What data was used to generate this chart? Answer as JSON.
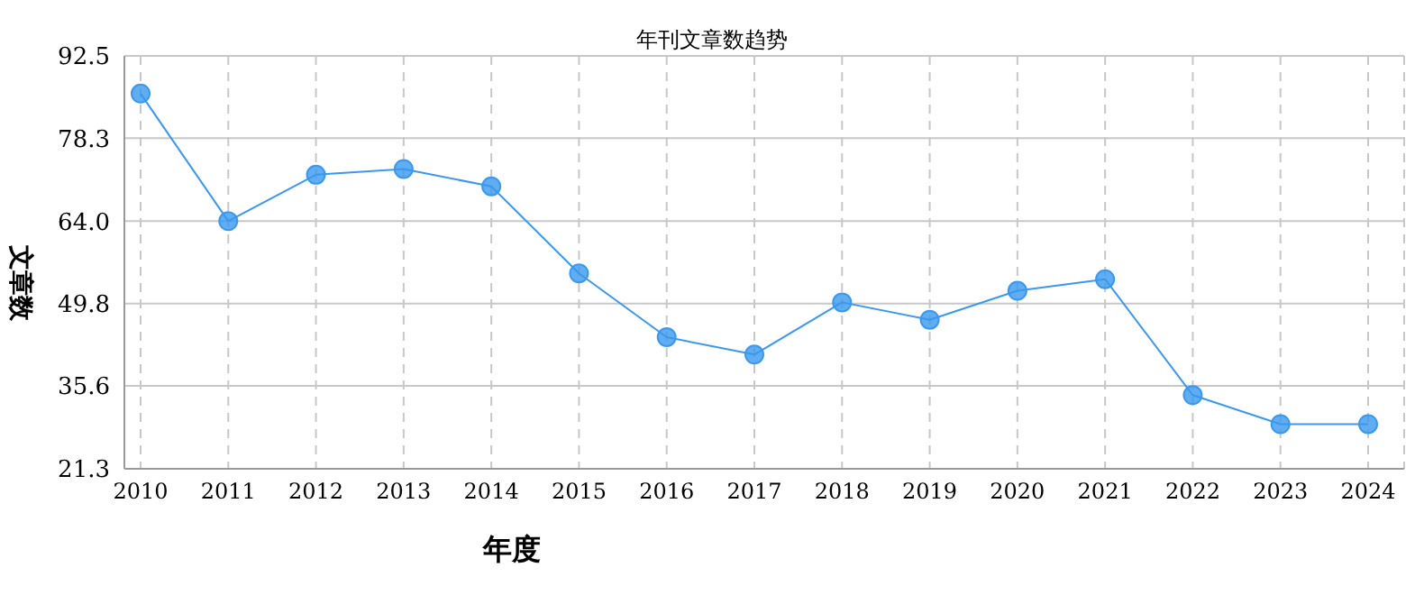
{
  "chart_data": {
    "type": "line",
    "title": "年刊文章数趋势",
    "xlabel": "年度",
    "ylabel": "文章数",
    "categories": [
      "2010",
      "2011",
      "2012",
      "2013",
      "2014",
      "2015",
      "2016",
      "2017",
      "2018",
      "2019",
      "2020",
      "2021",
      "2022",
      "2023",
      "2024"
    ],
    "series": [
      {
        "color": "#3a98ee",
        "values": [
          86,
          64,
          72,
          73,
          70,
          55,
          44,
          41,
          50,
          47,
          52,
          54,
          34,
          29,
          29
        ]
      }
    ],
    "ylim": [
      21.3,
      92.5
    ],
    "yticks": [
      {
        "value": 21.3,
        "label": "21.3"
      },
      {
        "value": 35.6,
        "label": "35.6"
      },
      {
        "value": 49.8,
        "label": "49.8"
      },
      {
        "value": 64,
        "label": "64.0"
      },
      {
        "value": 78.3,
        "label": "78.3"
      },
      {
        "value": 92.5,
        "label": "92.5"
      }
    ],
    "grid": true,
    "marker": "circle",
    "line_style": "solid"
  }
}
